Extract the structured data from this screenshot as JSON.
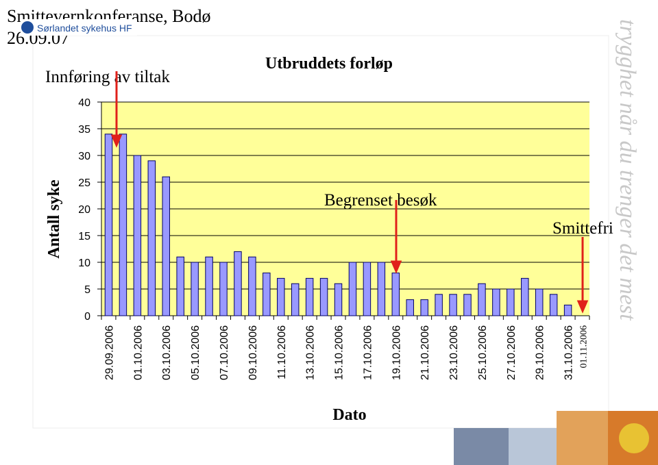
{
  "slide": {
    "header": "Smittevernkonferanse, Bodø",
    "date": "26.09.07",
    "logo": "Sørlandet sykehus HF",
    "tagline": "trygghet når du trenger det mest"
  },
  "chart_data": {
    "type": "bar",
    "title": "Utbruddets forløp",
    "x_label": "Dato",
    "y_label": "Antall syke",
    "categories": [
      "29.09.2006",
      null,
      "01.10.2006",
      null,
      "03.10.2006",
      null,
      "05.10.2006",
      null,
      "07.10.2006",
      null,
      "09.10.2006",
      null,
      "11.10.2006",
      null,
      "13.10.2006",
      null,
      "15.10.2006",
      null,
      "17.10.2006",
      null,
      "19.10.2006",
      null,
      "21.10.2006",
      null,
      "23.10.2006",
      null,
      "25.10.2006",
      null,
      "27.10.2006",
      null,
      "29.10.2006",
      null,
      "31.10.2006",
      "01.11.2006"
    ],
    "values": [
      34,
      34,
      30,
      29,
      26,
      11,
      10,
      11,
      10,
      12,
      11,
      8,
      7,
      6,
      7,
      7,
      6,
      10,
      10,
      10,
      8,
      3,
      3,
      4,
      4,
      4,
      6,
      5,
      5,
      7,
      5,
      4,
      2,
      0
    ],
    "color": "#9999ff",
    "plot_background": "#ffff99",
    "ylim": [
      0,
      40
    ],
    "yticks": [
      0,
      5,
      10,
      15,
      20,
      25,
      30,
      35,
      40
    ],
    "grid": true,
    "annotations": [
      "Innføring av tiltak",
      "Begrenset besøk",
      "Smittefri"
    ]
  }
}
